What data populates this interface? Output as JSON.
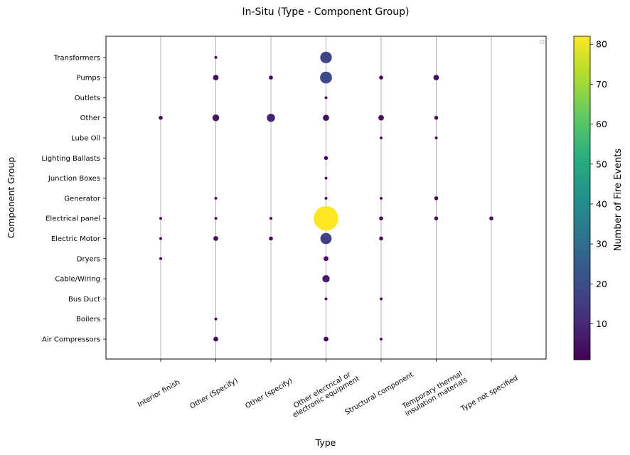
{
  "chart_data": {
    "type": "scatter",
    "title": "In-Situ (Type - Component Group)",
    "xlabel": "Type",
    "ylabel": "Component Group",
    "x_categories": [
      "Interior finish",
      "Other (Specify)",
      "Other (specify)",
      "Other electrical or\nelectronic equipment",
      "Structural component",
      "Temporary thermal\ninsulation materials",
      "Type not specified"
    ],
    "y_categories": [
      "Air Compressors",
      "Boilers",
      "Bus Duct",
      "Cable/Wiring",
      "Dryers",
      "Electric Motor",
      "Electrical panel",
      "Generator",
      "Junction Boxes",
      "Lighting Ballasts",
      "Lube Oil",
      "Other",
      "Outlets",
      "Pumps",
      "Transformers"
    ],
    "points": [
      {
        "x": "Other (Specify)",
        "y": "Transformers",
        "value": 1
      },
      {
        "x": "Other electrical or\nelectronic equipment",
        "y": "Transformers",
        "value": 18
      },
      {
        "x": "Other (Specify)",
        "y": "Pumps",
        "value": 4
      },
      {
        "x": "Other (specify)",
        "y": "Pumps",
        "value": 2
      },
      {
        "x": "Other electrical or\nelectronic equipment",
        "y": "Pumps",
        "value": 19
      },
      {
        "x": "Structural component",
        "y": "Pumps",
        "value": 2
      },
      {
        "x": "Temporary thermal\ninsulation materials",
        "y": "Pumps",
        "value": 4
      },
      {
        "x": "Other electrical or\nelectronic equipment",
        "y": "Outlets",
        "value": 1
      },
      {
        "x": "Interior finish",
        "y": "Other",
        "value": 2
      },
      {
        "x": "Other (Specify)",
        "y": "Other",
        "value": 6
      },
      {
        "x": "Other (specify)",
        "y": "Other",
        "value": 9
      },
      {
        "x": "Other electrical or\nelectronic equipment",
        "y": "Other",
        "value": 5
      },
      {
        "x": "Structural component",
        "y": "Other",
        "value": 4
      },
      {
        "x": "Temporary thermal\ninsulation materials",
        "y": "Other",
        "value": 2
      },
      {
        "x": "Structural component",
        "y": "Lube Oil",
        "value": 1
      },
      {
        "x": "Temporary thermal\ninsulation materials",
        "y": "Lube Oil",
        "value": 1
      },
      {
        "x": "Other electrical or\nelectronic equipment",
        "y": "Lighting Ballasts",
        "value": 2
      },
      {
        "x": "Other electrical or\nelectronic equipment",
        "y": "Junction Boxes",
        "value": 1
      },
      {
        "x": "Other (Specify)",
        "y": "Generator",
        "value": 1
      },
      {
        "x": "Other electrical or\nelectronic equipment",
        "y": "Generator",
        "value": 1
      },
      {
        "x": "Structural component",
        "y": "Generator",
        "value": 1
      },
      {
        "x": "Temporary thermal\ninsulation materials",
        "y": "Generator",
        "value": 2
      },
      {
        "x": "Interior finish",
        "y": "Electrical panel",
        "value": 1
      },
      {
        "x": "Other (Specify)",
        "y": "Electrical panel",
        "value": 1
      },
      {
        "x": "Other (specify)",
        "y": "Electrical panel",
        "value": 1
      },
      {
        "x": "Other electrical or\nelectronic equipment",
        "y": "Electrical panel",
        "value": 82
      },
      {
        "x": "Structural component",
        "y": "Electrical panel",
        "value": 2
      },
      {
        "x": "Temporary thermal\ninsulation materials",
        "y": "Electrical panel",
        "value": 2
      },
      {
        "x": "Type not specified",
        "y": "Electrical panel",
        "value": 2
      },
      {
        "x": "Interior finish",
        "y": "Electric Motor",
        "value": 1
      },
      {
        "x": "Other (Specify)",
        "y": "Electric Motor",
        "value": 3
      },
      {
        "x": "Other (specify)",
        "y": "Electric Motor",
        "value": 2
      },
      {
        "x": "Other electrical or\nelectronic equipment",
        "y": "Electric Motor",
        "value": 17
      },
      {
        "x": "Structural component",
        "y": "Electric Motor",
        "value": 2
      },
      {
        "x": "Interior finish",
        "y": "Dryers",
        "value": 1
      },
      {
        "x": "Other electrical or\nelectronic equipment",
        "y": "Dryers",
        "value": 3
      },
      {
        "x": "Other electrical or\nelectronic equipment",
        "y": "Cable/Wiring",
        "value": 7
      },
      {
        "x": "Other electrical or\nelectronic equipment",
        "y": "Bus Duct",
        "value": 1
      },
      {
        "x": "Structural component",
        "y": "Bus Duct",
        "value": 1
      },
      {
        "x": "Other (Specify)",
        "y": "Boilers",
        "value": 1
      },
      {
        "x": "Other (Specify)",
        "y": "Air Compressors",
        "value": 3
      },
      {
        "x": "Other electrical or\nelectronic equipment",
        "y": "Air Compressors",
        "value": 3
      },
      {
        "x": "Structural component",
        "y": "Air Compressors",
        "value": 1
      }
    ],
    "colorbar": {
      "label": "Number of Fire Events",
      "colormap": "viridis",
      "range": [
        1,
        82
      ],
      "ticks": [
        10,
        20,
        30,
        40,
        50,
        60,
        70,
        80
      ]
    },
    "grid": "vertical",
    "legend": "top-right"
  }
}
